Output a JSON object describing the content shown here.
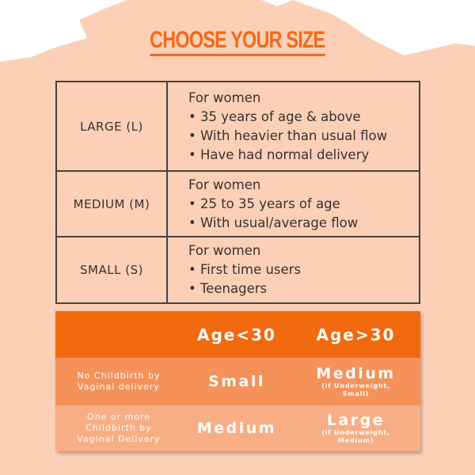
{
  "title": "CHOOSE YOUR SIZE",
  "colors": {
    "background": "#fbd0b6",
    "accent": "#f26a1b",
    "row1": "#f5925a",
    "row2": "#f8ae84"
  },
  "sizes": [
    {
      "size": "LARGE (L)",
      "heading": "For women",
      "points": [
        "• 35 years of age & above",
        "• With heavier than usual flow",
        "• Have had normal delivery"
      ]
    },
    {
      "size": "MEDIUM (M)",
      "heading": "For women",
      "points": [
        "• 25 to 35 years of age",
        "• With usual/average flow"
      ]
    },
    {
      "size": "SMALL (S)",
      "heading": "For women",
      "points": [
        "• First time users",
        "• Teenagers"
      ]
    }
  ],
  "matrix": {
    "headers": [
      "",
      "Age<30",
      "Age>30"
    ],
    "rows": [
      {
        "label": [
          "No Childbirth by",
          "Vaginal delivery"
        ],
        "young": "Small",
        "old": "Medium",
        "old_note": [
          "(if Underweight,",
          "Small)"
        ]
      },
      {
        "label": [
          "One or more",
          "Childbirth by",
          "Vaginal Delivery"
        ],
        "young": "Medium",
        "old": "Large",
        "old_note": [
          "(if Underweight,",
          "Medium)"
        ]
      }
    ]
  }
}
